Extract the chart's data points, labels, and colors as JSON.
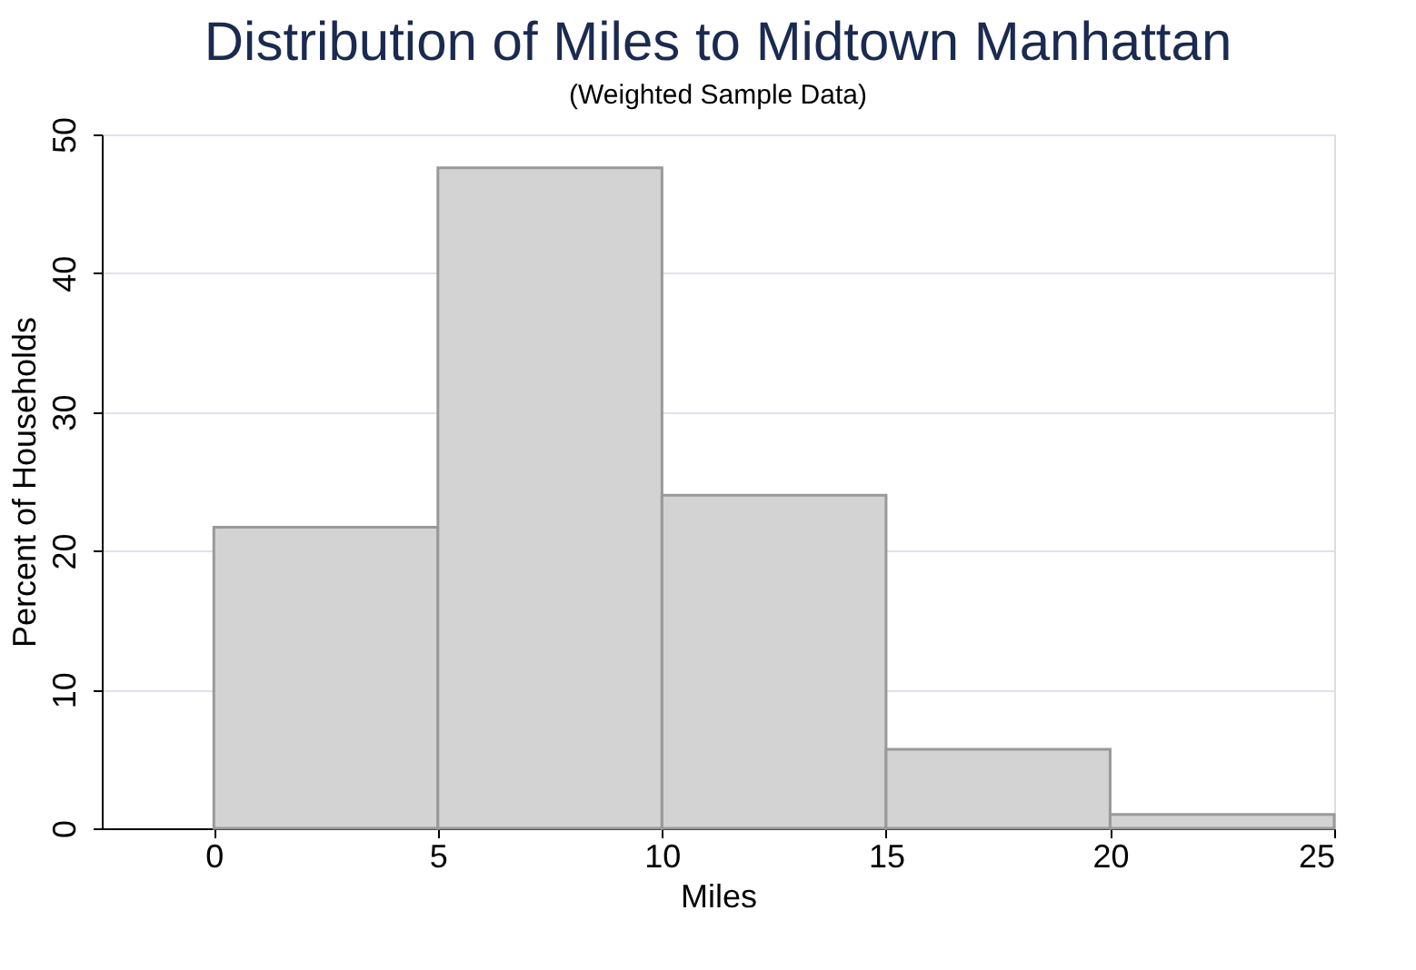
{
  "chart_data": {
    "type": "histogram",
    "title": "Distribution of Miles to Midtown Manhattan",
    "subtitle": "(Weighted Sample Data)",
    "xlabel": "Miles",
    "ylabel": "Percent of Households",
    "bins": [
      0,
      5,
      10,
      15,
      20,
      25
    ],
    "values": [
      21.7,
      47.6,
      24.0,
      5.7,
      1.0
    ],
    "color": "#d3d3d3",
    "xlim": [
      -2.5,
      25
    ],
    "xticks": [
      0,
      5,
      10,
      15,
      20,
      25
    ],
    "ylim": [
      0,
      50
    ],
    "yticks": [
      0,
      10,
      20,
      30,
      40,
      50
    ],
    "grid": "y"
  }
}
